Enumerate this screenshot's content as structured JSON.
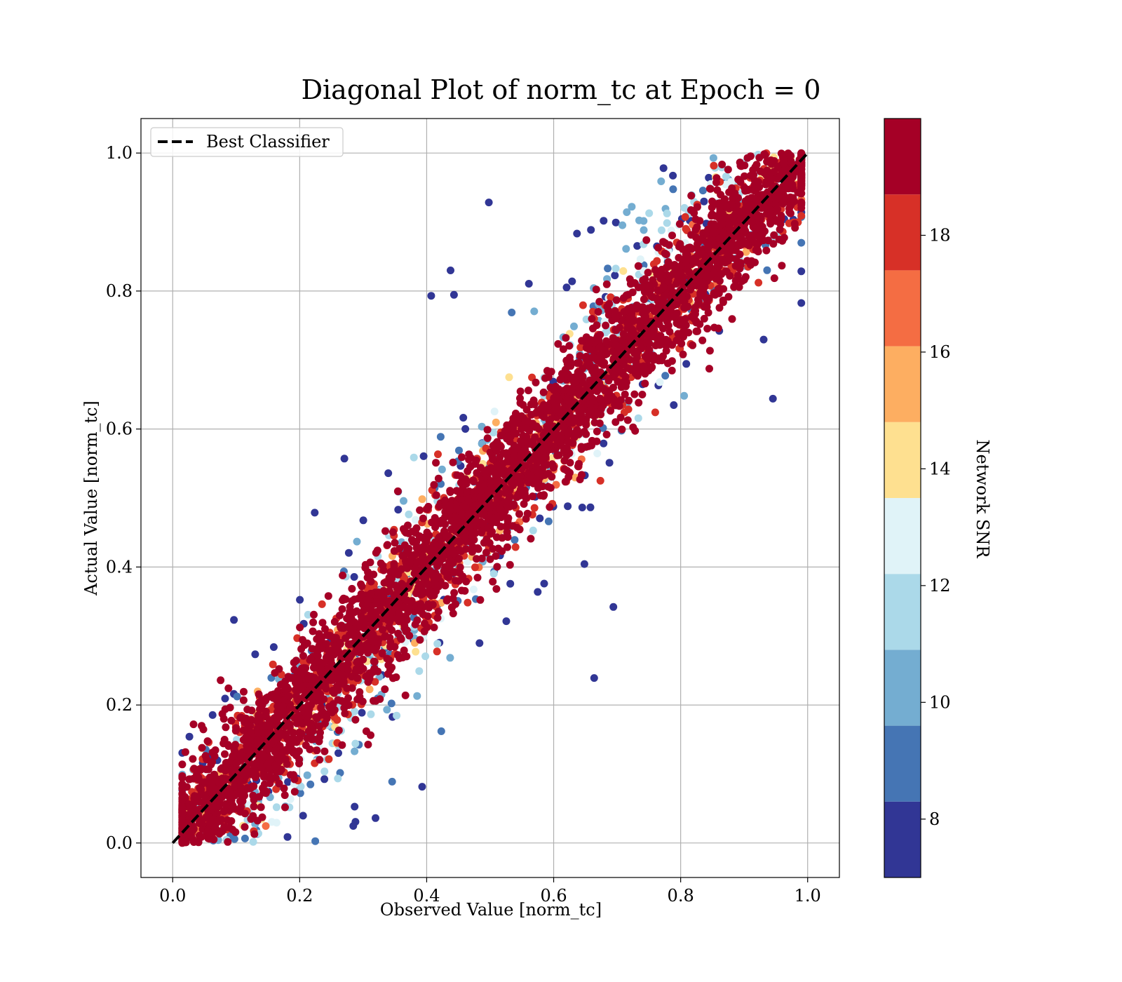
{
  "chart_data": {
    "type": "scatter",
    "title": "Diagonal Plot of norm_tc at Epoch = 0",
    "xlabel": "Observed Value [norm_tc]",
    "ylabel": "Actual Value [norm_tc]",
    "xlim": [
      -0.05,
      1.05
    ],
    "ylim": [
      -0.05,
      1.05
    ],
    "xticks": [
      "0.0",
      "0.2",
      "0.4",
      "0.6",
      "0.8",
      "1.0"
    ],
    "yticks": [
      "0.0",
      "0.2",
      "0.4",
      "0.6",
      "0.8",
      "1.0"
    ],
    "grid": true,
    "legend": {
      "position": "top-left",
      "entries": [
        "Best Classifier"
      ]
    },
    "reference_line": {
      "name": "Best Classifier",
      "x": [
        0,
        1
      ],
      "y": [
        0,
        1
      ],
      "style": "dashed",
      "color": "#000000"
    },
    "colorbar": {
      "label": "Network SNR",
      "range": [
        7,
        20
      ],
      "ticks": [
        "8",
        "10",
        "12",
        "14",
        "16",
        "18"
      ],
      "bins": [
        {
          "from": 7,
          "to": 8.3,
          "color": "#313695"
        },
        {
          "from": 8.3,
          "to": 9.6,
          "color": "#4575b4"
        },
        {
          "from": 9.6,
          "to": 10.9,
          "color": "#74add1"
        },
        {
          "from": 10.9,
          "to": 12.2,
          "color": "#abd9e9"
        },
        {
          "from": 12.2,
          "to": 13.5,
          "color": "#e0f3f8"
        },
        {
          "from": 13.5,
          "to": 14.8,
          "color": "#fee090"
        },
        {
          "from": 14.8,
          "to": 16.1,
          "color": "#fdae61"
        },
        {
          "from": 16.1,
          "to": 17.4,
          "color": "#f46d43"
        },
        {
          "from": 17.4,
          "to": 18.7,
          "color": "#d73027"
        },
        {
          "from": 18.7,
          "to": 20,
          "color": "#a50026"
        }
      ]
    },
    "series_description": {
      "points": "dense scatter of observed vs actual norm_tc; high-SNR points (dark red) cluster tightly along y = x, lower-SNR points spread further from the diagonal",
      "x_range": [
        0.02,
        0.99
      ],
      "y_range": [
        0.0,
        1.0
      ]
    }
  }
}
